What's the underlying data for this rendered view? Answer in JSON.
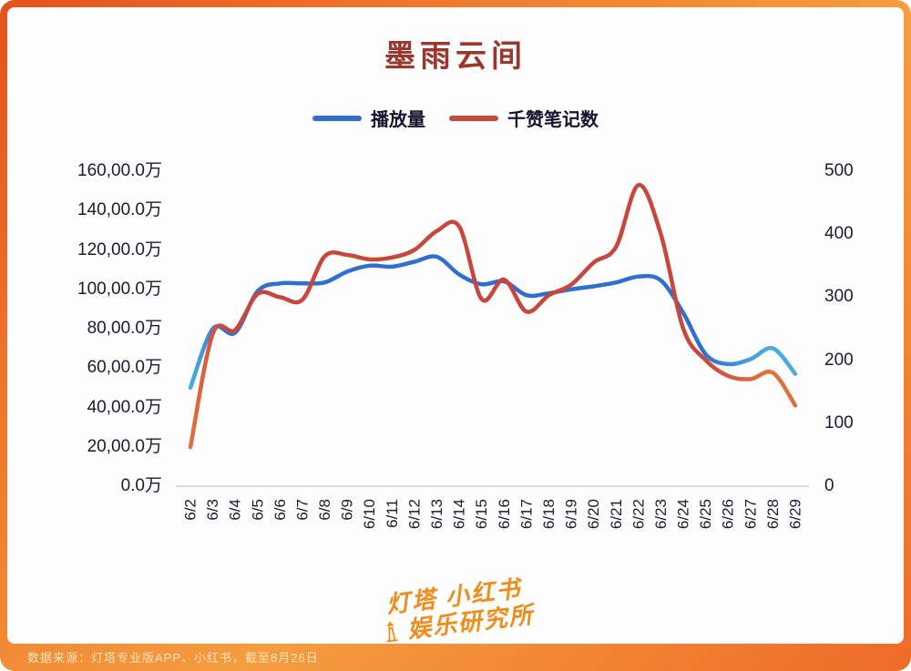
{
  "page": {
    "source_note": "数据来源：灯塔专业版APP、小红书，截至8月26日",
    "watermark": {
      "line1": "灯塔 小红书",
      "line2": "娱乐研究所",
      "icon": "lighthouse-icon",
      "color": "#f08c1a"
    }
  },
  "chart_data": {
    "type": "line",
    "title": "墨雨云间",
    "title_color": "#9c352b",
    "grid": false,
    "legend_position": "top",
    "categories": [
      "6/2",
      "6/3",
      "6/4",
      "6/5",
      "6/6",
      "6/7",
      "6/8",
      "6/9",
      "6/10",
      "6/11",
      "6/12",
      "6/13",
      "6/14",
      "6/15",
      "6/16",
      "6/17",
      "6/18",
      "6/19",
      "6/20",
      "6/21",
      "6/22",
      "6/23",
      "6/24",
      "6/25",
      "6/26",
      "6/27",
      "6/28",
      "6/29"
    ],
    "series": [
      {
        "name": "播放量",
        "axis": "left",
        "unit": "万",
        "color": "#2e6fd0",
        "edge_color": "#49abdf",
        "values": [
          5000,
          8000,
          7800,
          9900,
          10300,
          10300,
          10350,
          10900,
          11200,
          11150,
          11400,
          11650,
          10750,
          10250,
          10400,
          9700,
          9800,
          10000,
          10150,
          10350,
          10650,
          10450,
          8800,
          6700,
          6200,
          6450,
          7000,
          5700
        ]
      },
      {
        "name": "千赞笔记数",
        "axis": "right",
        "unit": "",
        "color": "#c8463b",
        "edge_color": "#e0703e",
        "values": [
          62,
          242,
          248,
          305,
          300,
          296,
          365,
          367,
          360,
          363,
          375,
          405,
          412,
          297,
          328,
          277,
          303,
          320,
          355,
          380,
          478,
          400,
          250,
          200,
          175,
          170,
          180,
          128
        ]
      }
    ],
    "left_axis": {
      "min": 0,
      "max": 16000,
      "tick_labels": [
        "160,00.0万",
        "140,00.0万",
        "120,00.0万",
        "100,00.0万",
        "80,00.0万",
        "60,00.0万",
        "40,00.0万",
        "20,00.0万",
        "0.0万"
      ]
    },
    "right_axis": {
      "min": 0,
      "max": 500,
      "tick_labels": [
        "500",
        "400",
        "300",
        "200",
        "100",
        "0"
      ]
    }
  }
}
